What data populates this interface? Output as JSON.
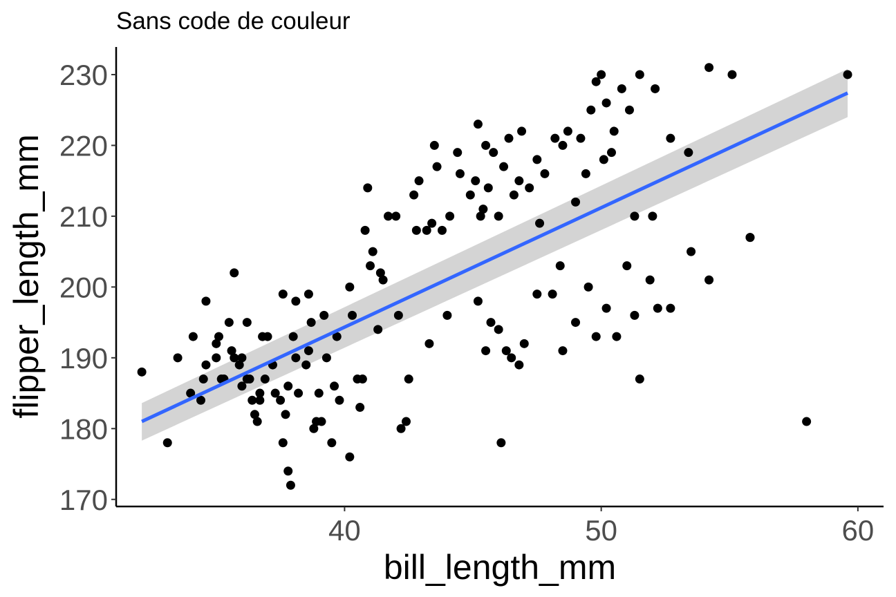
{
  "chart_data": {
    "type": "scatter",
    "title": "Sans code de couleur",
    "xlabel": "bill_length_mm",
    "ylabel": "flipper_length_mm",
    "xlim": [
      31.1,
      61.0
    ],
    "ylim": [
      169.0,
      233.9
    ],
    "xticks": [
      40,
      50,
      60
    ],
    "yticks": [
      170,
      180,
      190,
      200,
      210,
      220,
      230
    ],
    "grid": false,
    "legend": "none",
    "point_color": "#000000",
    "fit_color": "#3366ff",
    "band_color": "#cccccc",
    "smooth": {
      "method": "lm",
      "x": [
        32.1,
        59.6
      ],
      "y": [
        181.0,
        227.4
      ],
      "ci_lower": [
        178.3,
        224.0
      ],
      "ci_upper": [
        183.6,
        230.8
      ]
    },
    "points": [
      [
        32.1,
        188
      ],
      [
        33.1,
        178
      ],
      [
        33.5,
        190
      ],
      [
        34.0,
        185
      ],
      [
        34.1,
        193
      ],
      [
        34.4,
        184
      ],
      [
        34.5,
        187
      ],
      [
        34.6,
        198
      ],
      [
        34.6,
        189
      ],
      [
        35.0,
        190
      ],
      [
        35.0,
        192
      ],
      [
        35.1,
        193
      ],
      [
        35.2,
        187
      ],
      [
        35.3,
        187
      ],
      [
        35.5,
        195
      ],
      [
        35.6,
        191
      ],
      [
        35.7,
        190
      ],
      [
        35.7,
        202
      ],
      [
        35.9,
        189
      ],
      [
        36.0,
        186
      ],
      [
        36.0,
        190
      ],
      [
        36.2,
        187
      ],
      [
        36.2,
        195
      ],
      [
        36.3,
        187
      ],
      [
        36.4,
        184
      ],
      [
        36.5,
        182
      ],
      [
        36.6,
        181
      ],
      [
        36.7,
        185
      ],
      [
        36.7,
        184
      ],
      [
        36.8,
        193
      ],
      [
        36.9,
        187
      ],
      [
        37.0,
        193
      ],
      [
        37.2,
        189
      ],
      [
        37.3,
        185
      ],
      [
        37.5,
        184
      ],
      [
        37.6,
        178
      ],
      [
        37.6,
        199
      ],
      [
        37.7,
        182
      ],
      [
        37.8,
        174
      ],
      [
        37.8,
        186
      ],
      [
        37.9,
        172
      ],
      [
        38.0,
        193
      ],
      [
        38.1,
        198
      ],
      [
        38.1,
        190
      ],
      [
        38.2,
        185
      ],
      [
        38.5,
        189
      ],
      [
        38.6,
        191
      ],
      [
        38.6,
        199
      ],
      [
        38.7,
        195
      ],
      [
        38.8,
        180
      ],
      [
        38.9,
        181
      ],
      [
        39.0,
        185
      ],
      [
        39.1,
        181
      ],
      [
        39.2,
        196
      ],
      [
        39.3,
        190
      ],
      [
        39.5,
        178
      ],
      [
        39.6,
        186
      ],
      [
        39.7,
        193
      ],
      [
        39.8,
        184
      ],
      [
        40.2,
        176
      ],
      [
        40.2,
        200
      ],
      [
        40.3,
        196
      ],
      [
        40.5,
        187
      ],
      [
        40.6,
        183
      ],
      [
        40.7,
        187
      ],
      [
        40.8,
        208
      ],
      [
        40.9,
        214
      ],
      [
        41.0,
        203
      ],
      [
        41.1,
        205
      ],
      [
        41.3,
        194
      ],
      [
        41.4,
        202
      ],
      [
        41.5,
        201
      ],
      [
        41.7,
        210
      ],
      [
        42.0,
        210
      ],
      [
        42.1,
        196
      ],
      [
        42.2,
        180
      ],
      [
        42.4,
        181
      ],
      [
        42.5,
        187
      ],
      [
        42.7,
        213
      ],
      [
        42.8,
        208
      ],
      [
        42.9,
        215
      ],
      [
        43.2,
        208
      ],
      [
        43.3,
        192
      ],
      [
        43.4,
        209
      ],
      [
        43.5,
        220
      ],
      [
        43.6,
        217
      ],
      [
        43.8,
        208
      ],
      [
        44.0,
        196
      ],
      [
        44.1,
        210
      ],
      [
        44.4,
        219
      ],
      [
        44.5,
        216
      ],
      [
        44.9,
        213
      ],
      [
        45.1,
        215
      ],
      [
        45.2,
        223
      ],
      [
        45.3,
        210
      ],
      [
        45.4,
        211
      ],
      [
        45.5,
        220
      ],
      [
        45.6,
        214
      ],
      [
        45.8,
        219
      ],
      [
        46.0,
        210
      ],
      [
        46.1,
        178
      ],
      [
        46.2,
        217
      ],
      [
        46.4,
        221
      ],
      [
        46.6,
        213
      ],
      [
        46.8,
        215
      ],
      [
        46.9,
        222
      ],
      [
        47.2,
        214
      ],
      [
        47.5,
        218
      ],
      [
        47.6,
        209
      ],
      [
        47.8,
        216
      ],
      [
        48.2,
        221
      ],
      [
        48.4,
        203
      ],
      [
        48.5,
        220
      ],
      [
        48.7,
        222
      ],
      [
        49.0,
        212
      ],
      [
        49.2,
        221
      ],
      [
        49.4,
        216
      ],
      [
        49.6,
        225
      ],
      [
        49.8,
        229
      ],
      [
        50.0,
        230
      ],
      [
        50.1,
        218
      ],
      [
        50.2,
        226
      ],
      [
        50.4,
        219
      ],
      [
        50.5,
        222
      ],
      [
        50.8,
        228
      ],
      [
        51.1,
        225
      ],
      [
        51.3,
        210
      ],
      [
        51.5,
        230
      ],
      [
        52.0,
        210
      ],
      [
        52.1,
        228
      ],
      [
        52.7,
        221
      ],
      [
        53.4,
        219
      ],
      [
        54.2,
        231
      ],
      [
        55.1,
        230
      ],
      [
        55.8,
        207
      ],
      [
        59.6,
        230
      ],
      [
        45.2,
        198
      ],
      [
        45.5,
        191
      ],
      [
        45.7,
        195
      ],
      [
        46.0,
        194
      ],
      [
        46.3,
        191
      ],
      [
        46.5,
        190
      ],
      [
        46.8,
        189
      ],
      [
        47.0,
        192
      ],
      [
        47.5,
        199
      ],
      [
        48.1,
        199
      ],
      [
        48.5,
        191
      ],
      [
        49.0,
        195
      ],
      [
        49.5,
        200
      ],
      [
        49.8,
        193
      ],
      [
        50.2,
        197
      ],
      [
        50.6,
        193
      ],
      [
        51.0,
        203
      ],
      [
        51.3,
        196
      ],
      [
        51.5,
        187
      ],
      [
        51.9,
        201
      ],
      [
        52.2,
        197
      ],
      [
        52.7,
        197
      ],
      [
        53.5,
        205
      ],
      [
        54.2,
        201
      ],
      [
        55.8,
        207
      ],
      [
        58.0,
        181
      ]
    ]
  }
}
